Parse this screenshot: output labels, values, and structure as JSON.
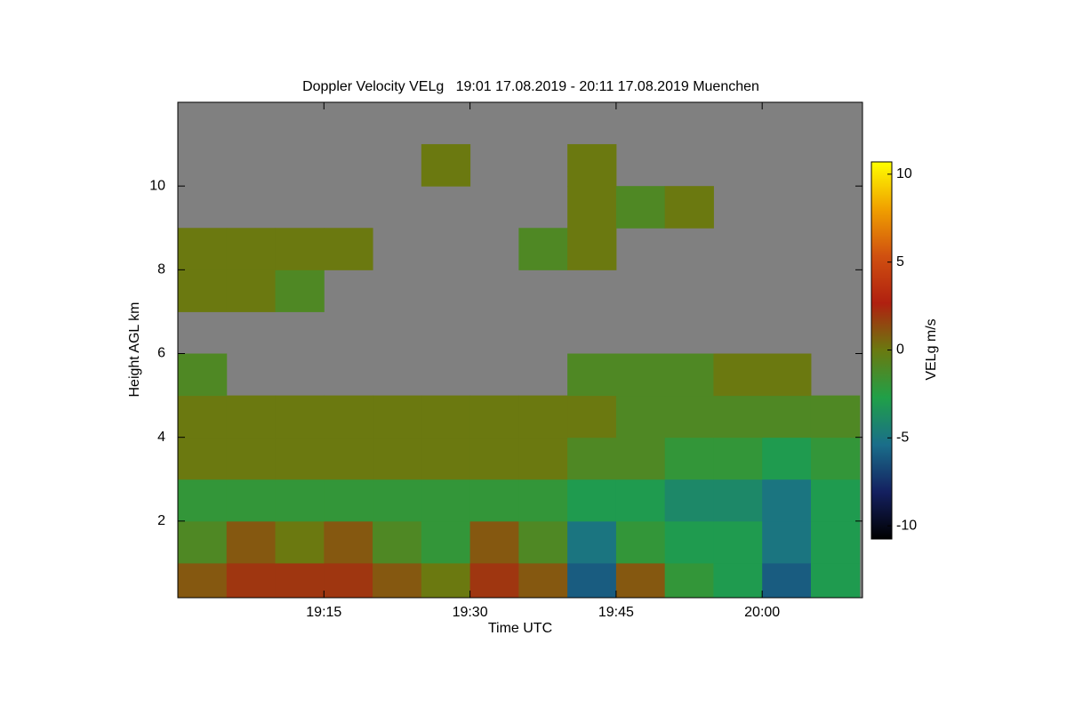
{
  "chart_data": {
    "type": "heatmap",
    "title": "Doppler Velocity VELg   19:01 17.08.2019 - 20:11 17.08.2019 Muenchen",
    "x_label": "Time UTC",
    "y_label": "Height AGL km",
    "xlim": [
      1140,
      1210.3
    ],
    "xticks": [
      {
        "value": 1155,
        "label": "19:15"
      },
      {
        "value": 1170,
        "label": "19:30"
      },
      {
        "value": 1185,
        "label": "19:45"
      },
      {
        "value": 1200,
        "label": "20:00"
      }
    ],
    "ylim": [
      0.17,
      12
    ],
    "yticks": [
      2,
      4,
      6,
      8,
      10
    ],
    "background": "#808080",
    "x": [
      1142.5,
      1147.5,
      1152.5,
      1157.5,
      1162.5,
      1167.5,
      1172.5,
      1177.5,
      1182.5,
      1187.5,
      1192.5,
      1197.5,
      1202.5,
      1207.5
    ],
    "y": [
      0.5,
      1.5,
      2.5,
      3.5,
      4.5,
      5.5,
      6.5,
      7.5,
      8.5,
      9.5,
      10.5,
      11.5
    ],
    "values": [
      [
        1,
        2,
        2,
        2,
        1,
        0,
        2,
        1,
        -6,
        1,
        -2,
        -3,
        -6,
        -3
      ],
      [
        -1,
        1,
        0,
        1,
        -1,
        -2,
        1,
        -1,
        -5,
        -2,
        -3,
        -3,
        -5,
        -3
      ],
      [
        -2,
        -2,
        -2,
        -2,
        -2,
        -2,
        -2,
        -2,
        -3,
        -3,
        -4,
        -4,
        -5,
        -3
      ],
      [
        0,
        0,
        0,
        0,
        0,
        0,
        0,
        0,
        -1,
        -1,
        -2,
        -2,
        -3,
        -2
      ],
      [
        0,
        0,
        0,
        0,
        0,
        0,
        0,
        0,
        0,
        -1,
        -1,
        -1,
        -1,
        -1
      ],
      [
        -1,
        null,
        null,
        null,
        null,
        null,
        null,
        null,
        -1,
        -1,
        -1,
        0,
        0,
        null
      ],
      [
        null,
        null,
        null,
        null,
        null,
        null,
        null,
        null,
        null,
        null,
        null,
        null,
        null,
        null
      ],
      [
        0,
        0,
        -1,
        null,
        null,
        null,
        null,
        null,
        null,
        null,
        null,
        null,
        null,
        null
      ],
      [
        0,
        0,
        0,
        0,
        null,
        null,
        null,
        -1,
        0,
        null,
        null,
        null,
        null,
        null
      ],
      [
        null,
        null,
        null,
        null,
        null,
        null,
        null,
        null,
        0,
        -1,
        0,
        null,
        null,
        null
      ],
      [
        null,
        null,
        null,
        null,
        null,
        0,
        null,
        null,
        0,
        null,
        null,
        null,
        null,
        null
      ],
      [
        null,
        null,
        null,
        null,
        null,
        null,
        null,
        null,
        null,
        null,
        null,
        null,
        null,
        null
      ]
    ],
    "colorbar": {
      "label": "VELg m/s",
      "lim": [
        -10.75,
        10.7
      ],
      "ticks": [
        -10,
        -5,
        0,
        5,
        10
      ],
      "colormap": [
        "#000000",
        "#142060",
        "#1a6e8a",
        "#20a048",
        "#6a7a10",
        "#b02010",
        "#d05010",
        "#f0a000",
        "#ffff00"
      ]
    }
  }
}
